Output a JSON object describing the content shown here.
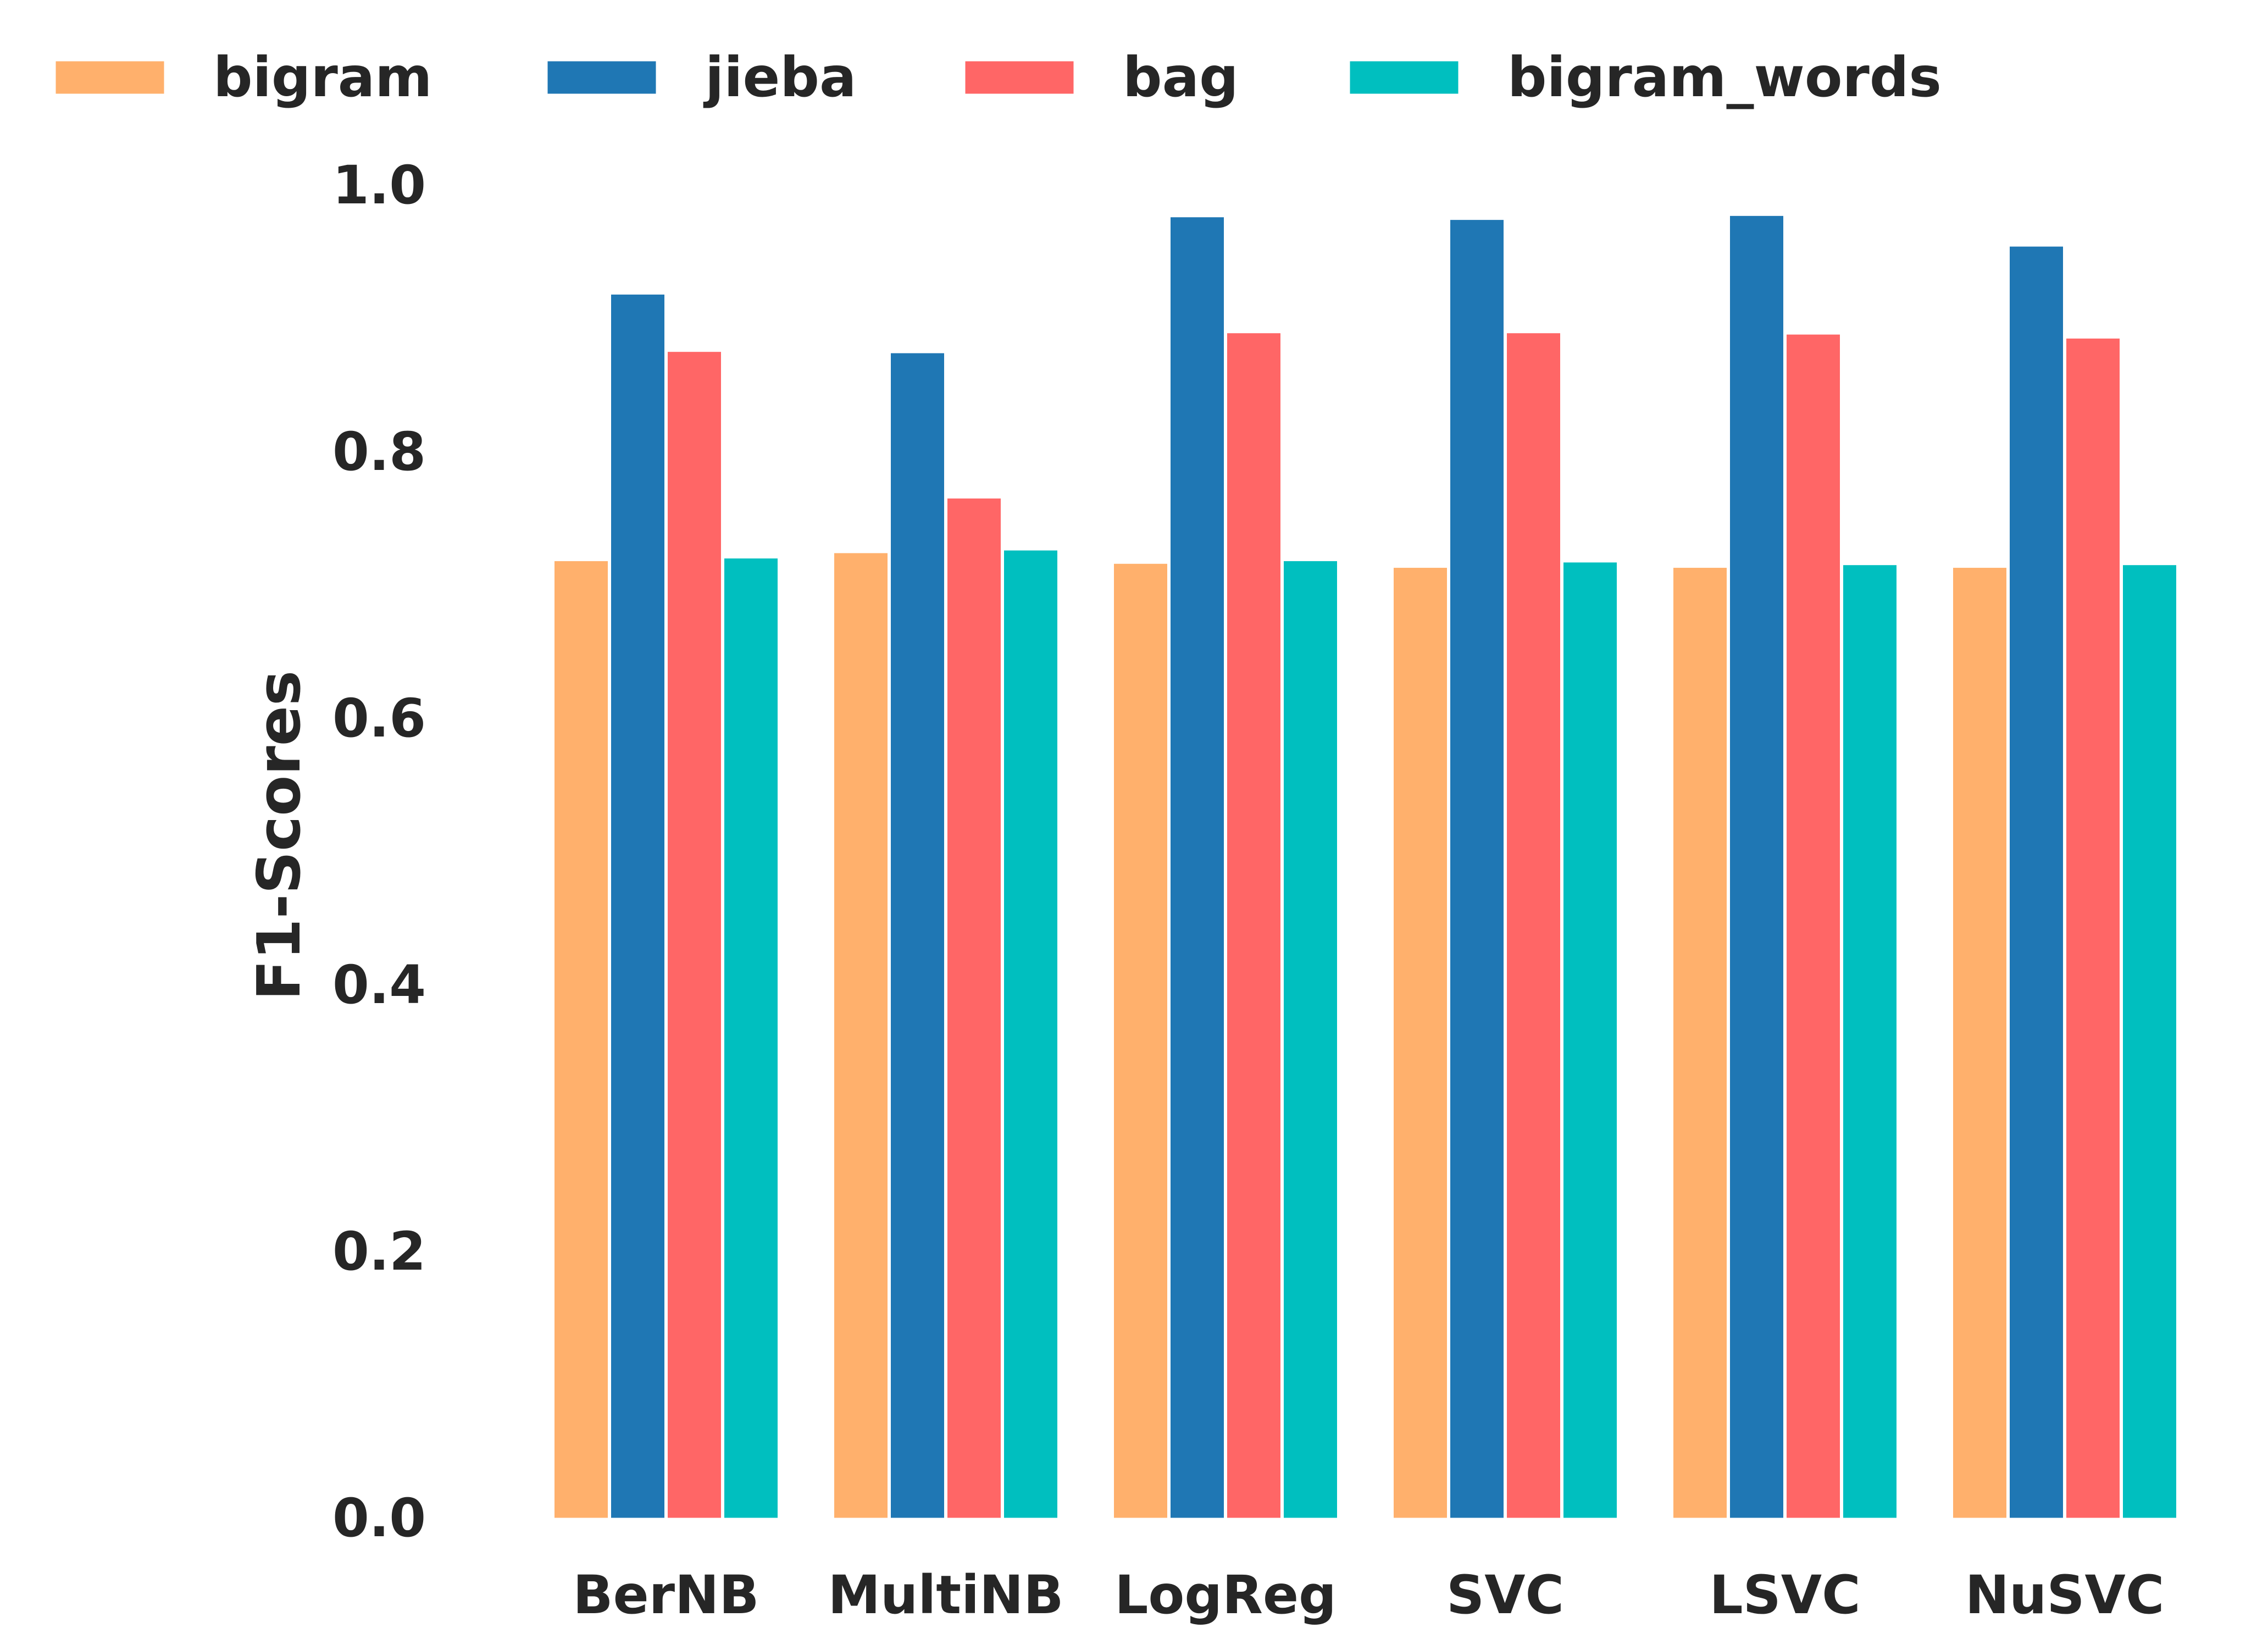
{
  "chart_data": {
    "type": "bar",
    "ylabel": "F1-Scores",
    "xlabel": "",
    "ylim": [
      0,
      1.0
    ],
    "yticks": [
      "0.0",
      "0.2",
      "0.4",
      "0.6",
      "0.8",
      "1.0"
    ],
    "grid": false,
    "legend_position": "top",
    "categories": [
      "BerNB",
      "MultiNB",
      "LogReg",
      "SVC",
      "LSVC",
      "NuSVC"
    ],
    "series": [
      {
        "name": "bigram",
        "color": "#FFB06C",
        "values": [
          0.719,
          0.725,
          0.717,
          0.714,
          0.714,
          0.714
        ]
      },
      {
        "name": "jieba",
        "color": "#1F77B4",
        "values": [
          0.919,
          0.875,
          0.977,
          0.975,
          0.978,
          0.955
        ]
      },
      {
        "name": "bag",
        "color": "#FF6666",
        "values": [
          0.876,
          0.766,
          0.89,
          0.89,
          0.889,
          0.886
        ]
      },
      {
        "name": "bigram_words",
        "color": "#00BFBF",
        "values": [
          0.721,
          0.727,
          0.719,
          0.718,
          0.716,
          0.716
        ]
      }
    ]
  }
}
